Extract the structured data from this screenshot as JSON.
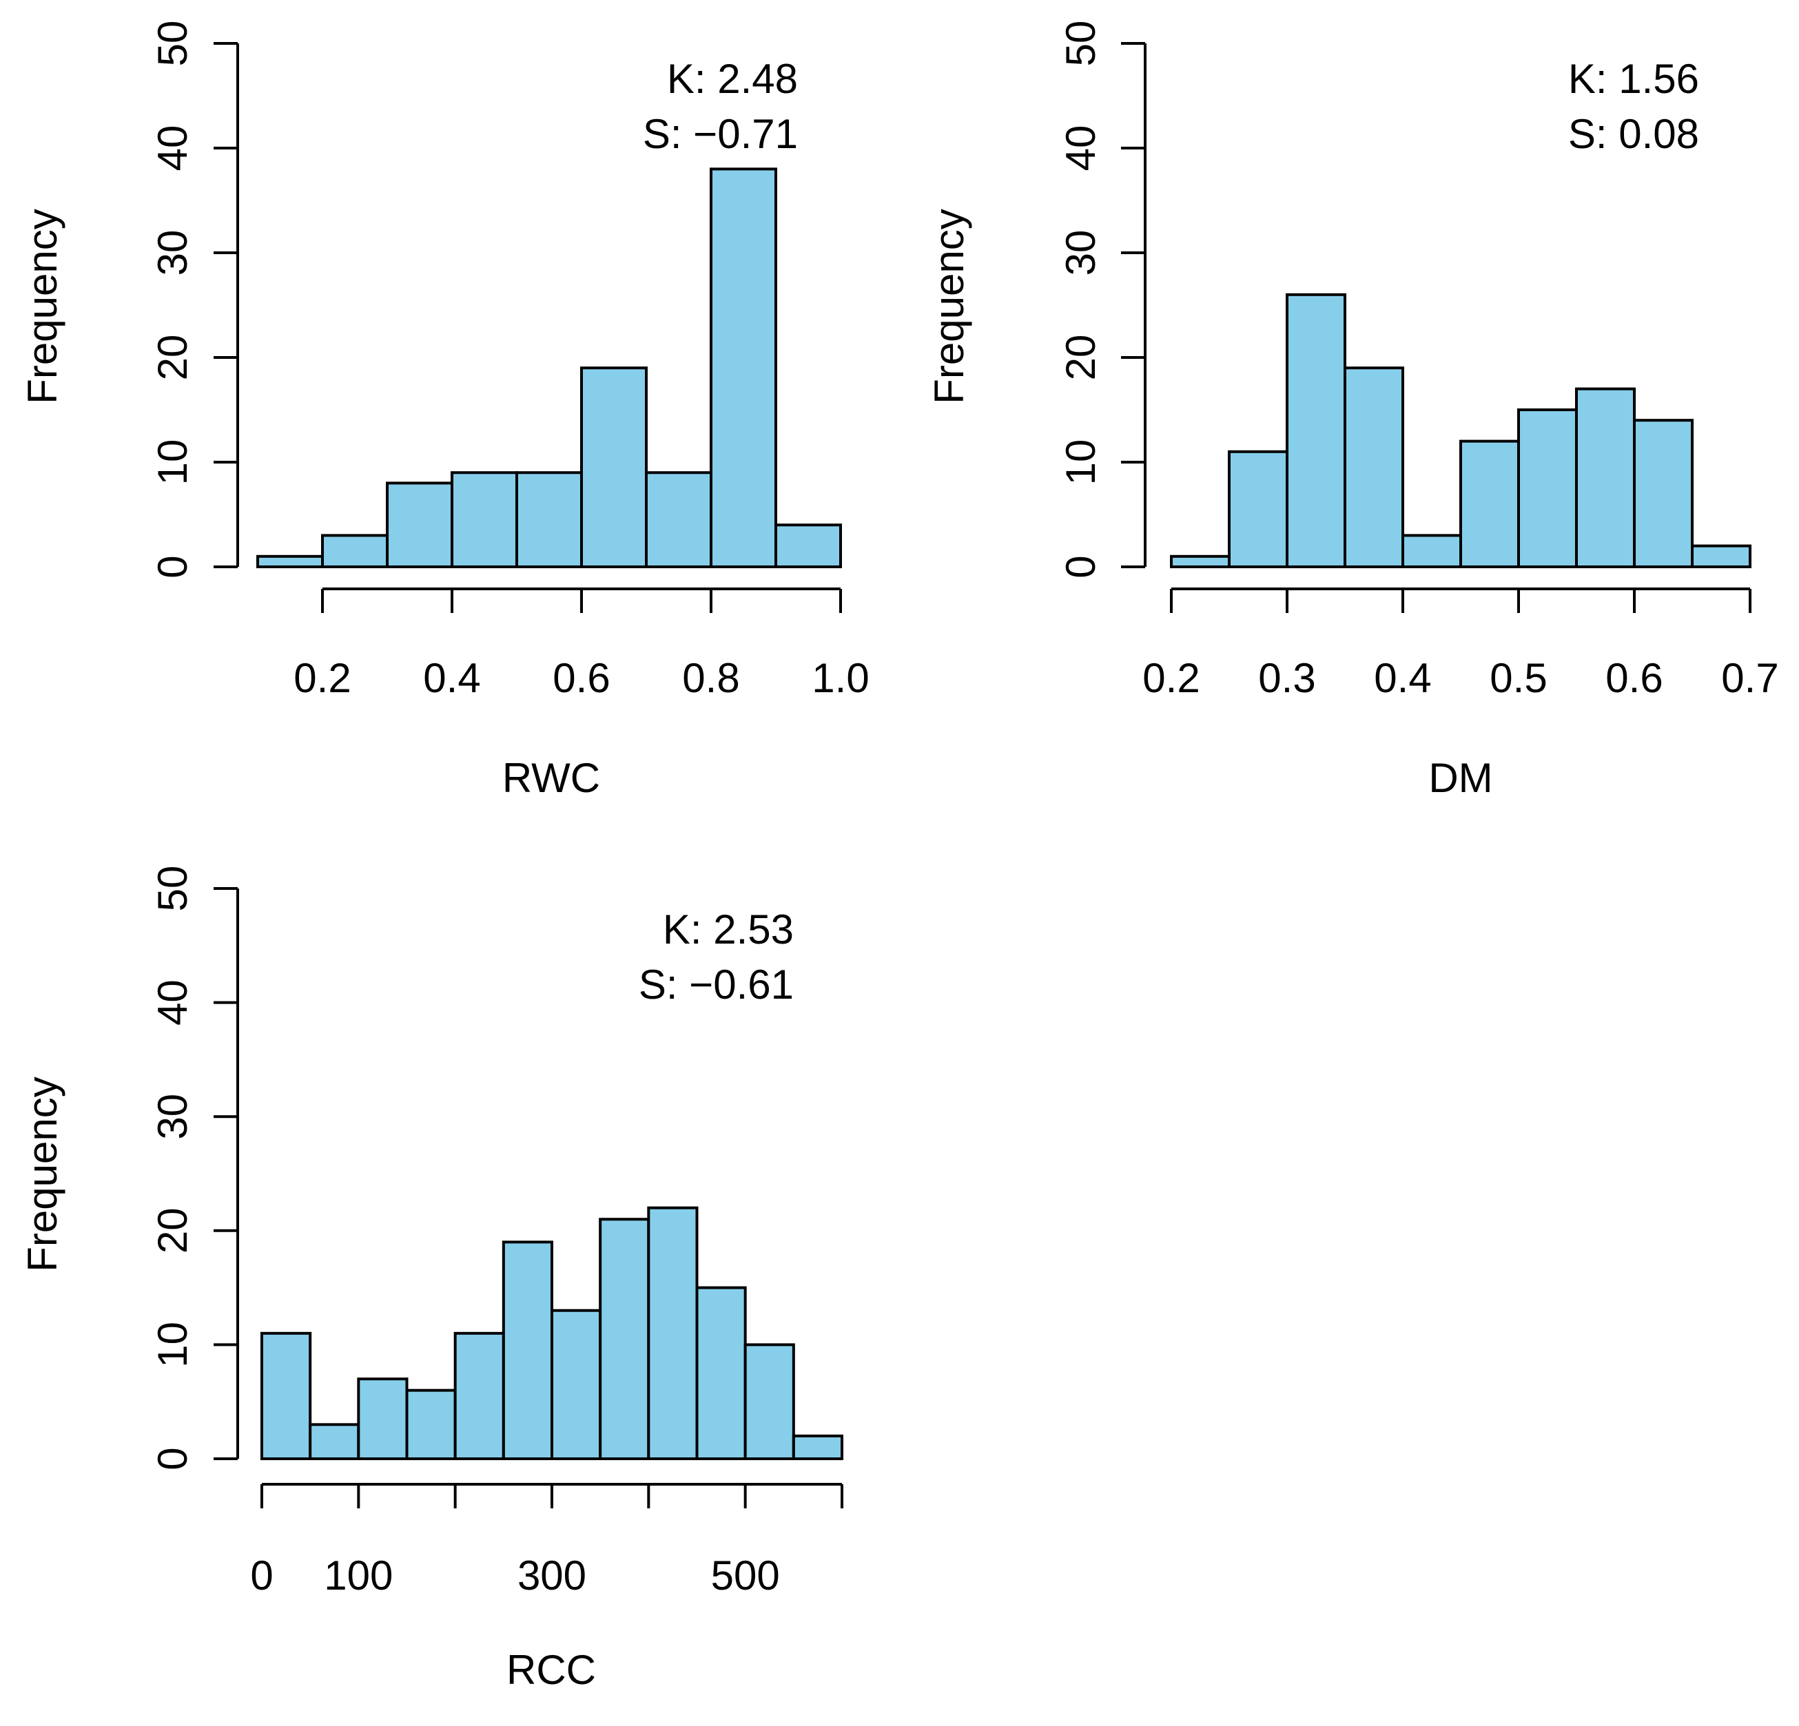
{
  "colors": {
    "bar_fill": "#87CEEB",
    "bar_stroke": "#000000",
    "background": "#ffffff"
  },
  "chart_data": [
    {
      "type": "bar",
      "title": "",
      "xlabel": "RWC",
      "ylabel": "Frequency",
      "ylim": [
        0,
        50
      ],
      "y_ticks": [
        0,
        10,
        20,
        30,
        40,
        50
      ],
      "x_axis_range": [
        0.2,
        1.0
      ],
      "x_ticks": [
        0.2,
        0.4,
        0.6,
        0.8,
        1.0
      ],
      "x_tick_labels": [
        "0.2",
        "0.4",
        "0.6",
        "0.8",
        "1.0"
      ],
      "bin_edges": [
        0.1,
        0.2,
        0.3,
        0.4,
        0.5,
        0.6,
        0.7,
        0.8,
        0.9,
        1.0
      ],
      "values": [
        1,
        3,
        8,
        9,
        9,
        19,
        9,
        38,
        4
      ],
      "annotations": [
        "K: 2.48",
        "S: −0.71"
      ]
    },
    {
      "type": "bar",
      "title": "",
      "xlabel": "DM",
      "ylabel": "Frequency",
      "ylim": [
        0,
        50
      ],
      "y_ticks": [
        0,
        10,
        20,
        30,
        40,
        50
      ],
      "x_axis_range": [
        0.2,
        0.7
      ],
      "x_ticks": [
        0.2,
        0.3,
        0.4,
        0.5,
        0.6,
        0.7
      ],
      "x_tick_labels": [
        "0.2",
        "0.3",
        "0.4",
        "0.5",
        "0.6",
        "0.7"
      ],
      "bin_edges": [
        0.2,
        0.25,
        0.3,
        0.35,
        0.4,
        0.45,
        0.5,
        0.55,
        0.6,
        0.65,
        0.7
      ],
      "values": [
        1,
        11,
        26,
        19,
        3,
        12,
        15,
        17,
        14,
        2
      ],
      "annotations": [
        "K: 1.56",
        "S: 0.08"
      ]
    },
    {
      "type": "bar",
      "title": "",
      "xlabel": "RCC",
      "ylabel": "Frequency",
      "ylim": [
        0,
        50
      ],
      "y_ticks": [
        0,
        10,
        20,
        30,
        40,
        50
      ],
      "x_axis_range": [
        0,
        600
      ],
      "x_ticks": [
        0,
        100,
        200,
        300,
        400,
        500,
        600
      ],
      "x_tick_labels": [
        "0",
        "100",
        "",
        "300",
        "",
        "500",
        ""
      ],
      "bin_edges": [
        0,
        50,
        100,
        150,
        200,
        250,
        300,
        350,
        400,
        450,
        500,
        550,
        600
      ],
      "values": [
        11,
        3,
        7,
        6,
        11,
        19,
        13,
        21,
        22,
        15,
        10,
        2
      ],
      "annotations": [
        "K: 2.53",
        "S: −0.61"
      ]
    }
  ]
}
